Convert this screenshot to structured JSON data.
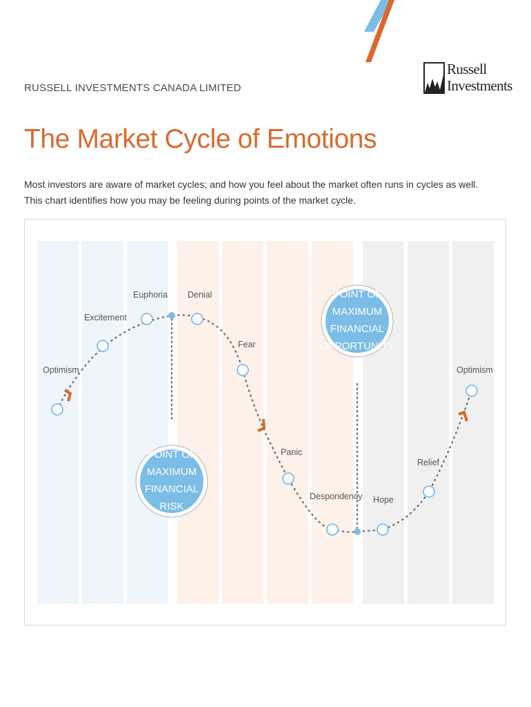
{
  "header": {
    "company": "RUSSELL INVESTMENTS CANADA LIMITED",
    "logo_text": [
      "Russell",
      "Investments"
    ],
    "stripe_colors": [
      "#7bbde6",
      "#d9692f"
    ]
  },
  "title": "The Market Cycle of Emotions",
  "intro": [
    "Most investors are aware of market cycles; and how you feel about the market often runs in cycles as well.",
    "This chart identifies how you may be feeling during points of the market cycle."
  ],
  "colors": {
    "accent": "#d9692f",
    "blue": "#7bbde6",
    "blue_band": "#eef5fb",
    "orange_band": "#fdf1ea",
    "gray_band": "#f0f0f0",
    "curve": "#6b6b6b"
  },
  "bands": [
    "blue",
    "blue",
    "blue",
    "orange",
    "orange",
    "orange",
    "orange",
    "gray",
    "gray",
    "gray"
  ],
  "stages": [
    {
      "label": "Optimism"
    },
    {
      "label": "Excitement"
    },
    {
      "label": "Euphoria"
    },
    {
      "label": "Denial"
    },
    {
      "label": "Fear"
    },
    {
      "label": "Panic"
    },
    {
      "label": "Despondency"
    },
    {
      "label": "Hope"
    },
    {
      "label": "Relief"
    },
    {
      "label": "Optimism"
    }
  ],
  "callouts": {
    "risk": [
      "POINT OF",
      "MAXIMUM",
      "FINANCIAL",
      "RISK"
    ],
    "opportunity": [
      "POINT OF",
      "MAXIMUM",
      "FINANCIAL",
      "OPPORTUNITY"
    ]
  }
}
